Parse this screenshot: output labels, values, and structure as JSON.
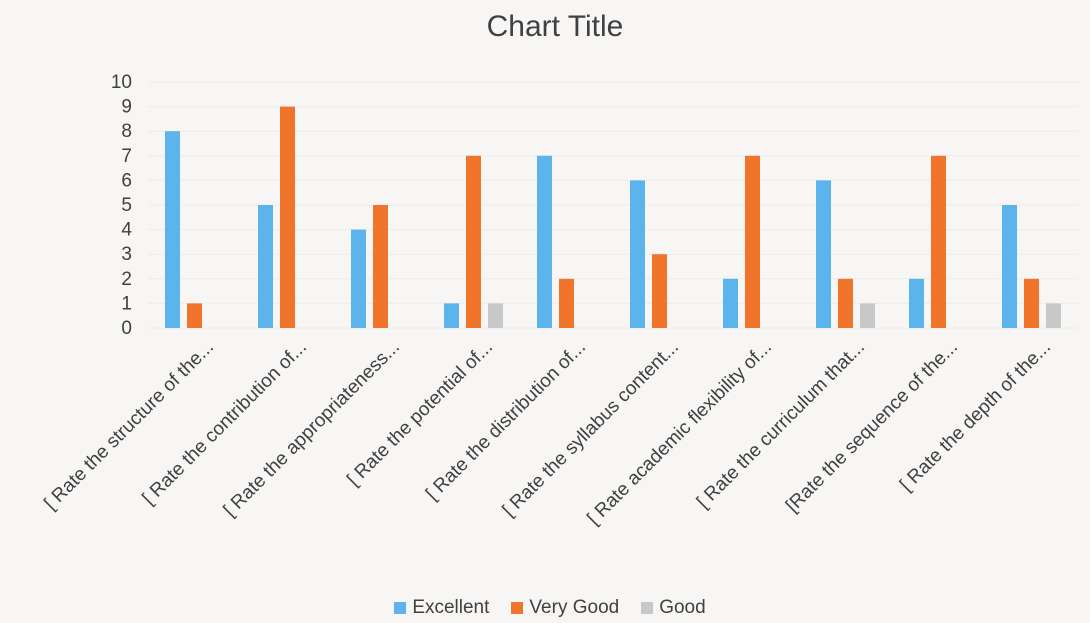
{
  "chart_data": {
    "type": "bar",
    "title": "Chart Title",
    "xlabel": "",
    "ylabel": "",
    "ylim": [
      0,
      10
    ],
    "yticks": [
      0,
      1,
      2,
      3,
      4,
      5,
      6,
      7,
      8,
      9,
      10
    ],
    "grid": true,
    "legend_position": "bottom",
    "categories": [
      "[ Rate the structure of the...",
      "[ Rate the contribution of...",
      "[ Rate the appropriateness...",
      "[ Rate the potential of...",
      "[ Rate the distribution of...",
      "[ Rate the syllabus content...",
      "[ Rate academic flexibility of...",
      "[ Rate the curriculum that...",
      "[Rate the sequence of the...",
      "[ Rate the depth of the..."
    ],
    "series": [
      {
        "name": "Excellent",
        "color": "#5bb5ec",
        "values": [
          8,
          5,
          4,
          1,
          7,
          6,
          2,
          6,
          2,
          5
        ]
      },
      {
        "name": "Very Good",
        "color": "#f0742c",
        "values": [
          1,
          9,
          5,
          7,
          2,
          3,
          7,
          2,
          7,
          2
        ]
      },
      {
        "name": "Good",
        "color": "#c9c8c8",
        "values": [
          0,
          0,
          0,
          1,
          0,
          0,
          0,
          1,
          0,
          1
        ]
      }
    ]
  }
}
